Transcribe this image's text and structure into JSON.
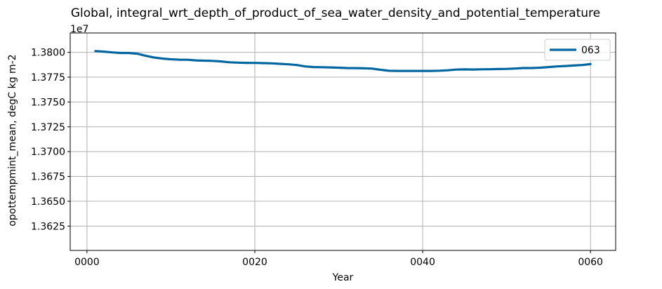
{
  "chart_data": {
    "type": "line",
    "title": "Global, integral_wrt_depth_of_product_of_sea_water_density_and_potential_temperature",
    "xlabel": "Year",
    "ylabel": "opottempmint_mean, degC kg m-2",
    "offset_text": "1e7",
    "xlim": [
      -2,
      63
    ],
    "ylim": [
      1.36005,
      1.38195
    ],
    "x_ticks": [
      0,
      20,
      40,
      60
    ],
    "x_tick_labels": [
      "0000",
      "0020",
      "0040",
      "0060"
    ],
    "y_ticks": [
      1.3625,
      1.365,
      1.3675,
      1.37,
      1.3725,
      1.375,
      1.3775,
      1.38
    ],
    "y_tick_labels": [
      "1.3625",
      "1.3650",
      "1.3675",
      "1.3700",
      "1.3725",
      "1.3750",
      "1.3775",
      "1.3800"
    ],
    "grid": true,
    "legend_position": "top-right",
    "series": [
      {
        "name": "063",
        "color": "#0066a0",
        "x": [
          1,
          2,
          3,
          4,
          5,
          6,
          7,
          8,
          9,
          10,
          11,
          12,
          13,
          14,
          15,
          16,
          17,
          18,
          19,
          20,
          21,
          22,
          23,
          24,
          25,
          26,
          27,
          28,
          29,
          30,
          31,
          32,
          33,
          34,
          35,
          36,
          37,
          38,
          39,
          40,
          41,
          42,
          43,
          44,
          45,
          46,
          47,
          48,
          49,
          50,
          51,
          52,
          53,
          54,
          55,
          56,
          57,
          58,
          59,
          60
        ],
        "values": [
          1.38013,
          1.38007,
          1.37999,
          1.37994,
          1.37994,
          1.37986,
          1.37965,
          1.37948,
          1.37937,
          1.3793,
          1.37926,
          1.37925,
          1.37919,
          1.37916,
          1.37914,
          1.37908,
          1.379,
          1.37896,
          1.37894,
          1.37893,
          1.37891,
          1.37889,
          1.37884,
          1.37879,
          1.37872,
          1.37858,
          1.37852,
          1.3785,
          1.37848,
          1.37845,
          1.37842,
          1.37841,
          1.37839,
          1.37836,
          1.37824,
          1.37814,
          1.37813,
          1.37813,
          1.37813,
          1.37813,
          1.37813,
          1.37815,
          1.37819,
          1.37826,
          1.37828,
          1.37827,
          1.37829,
          1.3783,
          1.37832,
          1.37833,
          1.37837,
          1.37842,
          1.37842,
          1.37845,
          1.37852,
          1.37858,
          1.37862,
          1.37867,
          1.37872,
          1.37881
        ]
      }
    ]
  }
}
